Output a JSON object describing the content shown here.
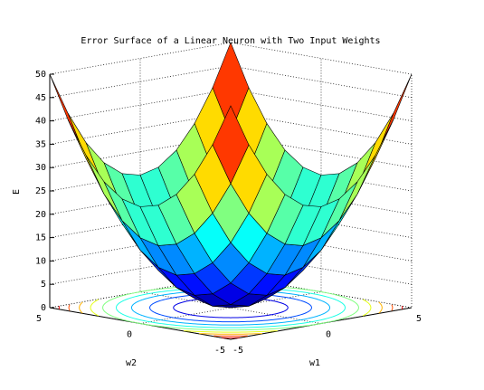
{
  "chart_data": {
    "type": "surface",
    "title": "Error Surface of a Linear Neuron with Two Input Weights",
    "xlabel": "w1",
    "ylabel": "w2",
    "zlabel": "E",
    "x": [
      -5,
      -4,
      -3,
      -2,
      -1,
      0,
      1,
      2,
      3,
      4,
      5
    ],
    "y": [
      -5,
      -4,
      -3,
      -2,
      -1,
      0,
      1,
      2,
      3,
      4,
      5
    ],
    "z": [
      [
        50,
        41,
        34,
        29,
        26,
        25,
        26,
        29,
        34,
        41,
        50
      ],
      [
        41,
        32,
        25,
        20,
        17,
        16,
        17,
        20,
        25,
        32,
        41
      ],
      [
        34,
        25,
        18,
        13,
        10,
        9,
        10,
        13,
        18,
        25,
        34
      ],
      [
        29,
        20,
        13,
        8,
        5,
        4,
        5,
        8,
        13,
        20,
        29
      ],
      [
        26,
        17,
        10,
        5,
        2,
        1,
        2,
        5,
        10,
        17,
        26
      ],
      [
        25,
        16,
        9,
        4,
        1,
        0,
        1,
        4,
        9,
        16,
        25
      ],
      [
        26,
        17,
        10,
        5,
        2,
        1,
        2,
        5,
        10,
        17,
        26
      ],
      [
        29,
        20,
        13,
        8,
        5,
        4,
        5,
        8,
        13,
        20,
        29
      ],
      [
        34,
        25,
        18,
        13,
        10,
        9,
        10,
        13,
        18,
        25,
        34
      ],
      [
        41,
        32,
        25,
        20,
        17,
        16,
        17,
        20,
        25,
        32,
        41
      ],
      [
        50,
        41,
        34,
        29,
        26,
        25,
        26,
        29,
        34,
        41,
        50
      ]
    ],
    "xlim": [
      -5,
      5
    ],
    "ylim": [
      -5,
      5
    ],
    "zlim": [
      0,
      50
    ],
    "xticks": [
      -5,
      0,
      5
    ],
    "yticks": [
      -5,
      0,
      5
    ],
    "zticks": [
      0,
      5,
      10,
      15,
      20,
      25,
      30,
      35,
      40,
      45,
      50
    ],
    "contour_levels": [
      5,
      10,
      15,
      20,
      25,
      30,
      35,
      40,
      45
    ],
    "colormap": "jet",
    "grid": true
  }
}
